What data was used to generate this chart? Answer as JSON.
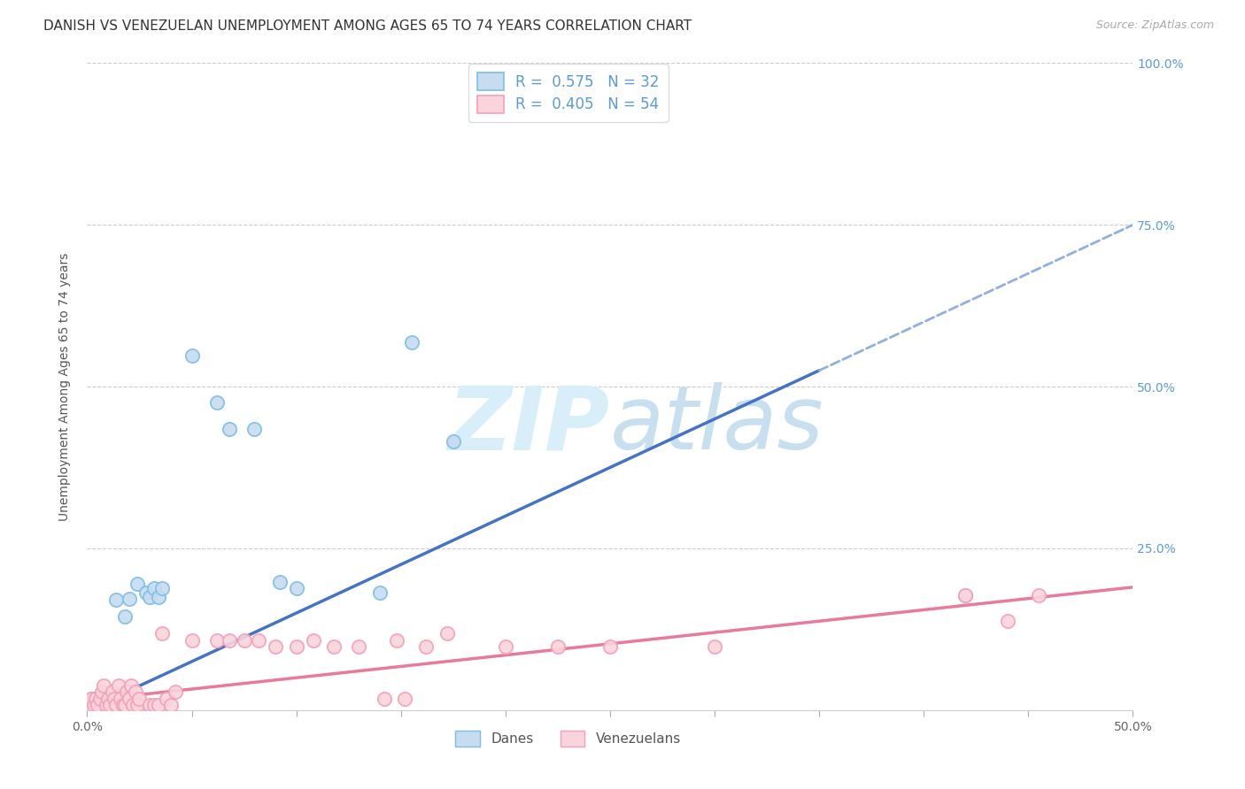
{
  "title": "DANISH VS VENEZUELAN UNEMPLOYMENT AMONG AGES 65 TO 74 YEARS CORRELATION CHART",
  "source_text": "Source: ZipAtlas.com",
  "ylabel": "Unemployment Among Ages 65 to 74 years",
  "xlim": [
    0,
    0.5
  ],
  "ylim": [
    0,
    1.0
  ],
  "legend_R_danes": "R = 0.575",
  "legend_N_danes": "N = 32",
  "legend_R_vene": "R = 0.405",
  "legend_N_vene": "N = 54",
  "danes_color_edge": "#7fbde8",
  "danes_color_fill": "#c6dcef",
  "vene_color_edge": "#f4a0b8",
  "vene_color_fill": "#fad4dc",
  "blue_line_color": "#4472C4",
  "blue_line_light": "#90b0e0",
  "pink_line_color": "#E87B9A",
  "watermark_color": "#d8eef8",
  "background_color": "#ffffff",
  "grid_color": "#cccccc",
  "title_fontsize": 11,
  "axis_label_fontsize": 10,
  "tick_fontsize": 10,
  "legend_fontsize": 12,
  "danes_scatter_x": [
    0.001,
    0.002,
    0.004,
    0.006,
    0.008,
    0.009,
    0.01,
    0.011,
    0.012,
    0.013,
    0.014,
    0.016,
    0.018,
    0.02,
    0.022,
    0.024,
    0.026,
    0.028,
    0.03,
    0.032,
    0.034,
    0.036,
    0.05,
    0.062,
    0.068,
    0.08,
    0.092,
    0.1,
    0.14,
    0.155,
    0.175,
    0.42
  ],
  "danes_scatter_y": [
    0.008,
    0.018,
    0.008,
    0.018,
    0.008,
    0.018,
    0.008,
    0.018,
    0.008,
    0.018,
    0.17,
    0.008,
    0.145,
    0.172,
    0.008,
    0.195,
    0.008,
    0.182,
    0.175,
    0.188,
    0.175,
    0.188,
    0.548,
    0.475,
    0.435,
    0.435,
    0.198,
    0.188,
    0.182,
    0.568,
    0.415,
    0.178
  ],
  "vene_scatter_x": [
    0.001,
    0.002,
    0.003,
    0.004,
    0.005,
    0.006,
    0.007,
    0.008,
    0.009,
    0.01,
    0.011,
    0.012,
    0.013,
    0.014,
    0.015,
    0.016,
    0.017,
    0.018,
    0.019,
    0.02,
    0.021,
    0.022,
    0.023,
    0.024,
    0.025,
    0.03,
    0.032,
    0.034,
    0.036,
    0.038,
    0.04,
    0.042,
    0.05,
    0.062,
    0.068,
    0.075,
    0.082,
    0.09,
    0.1,
    0.108,
    0.118,
    0.13,
    0.142,
    0.148,
    0.152,
    0.162,
    0.172,
    0.2,
    0.225,
    0.25,
    0.3,
    0.42,
    0.44,
    0.455
  ],
  "vene_scatter_y": [
    0.008,
    0.018,
    0.008,
    0.018,
    0.008,
    0.018,
    0.028,
    0.038,
    0.008,
    0.018,
    0.008,
    0.028,
    0.018,
    0.008,
    0.038,
    0.018,
    0.008,
    0.008,
    0.028,
    0.018,
    0.038,
    0.008,
    0.028,
    0.008,
    0.018,
    0.008,
    0.008,
    0.008,
    0.118,
    0.018,
    0.008,
    0.028,
    0.108,
    0.108,
    0.108,
    0.108,
    0.108,
    0.098,
    0.098,
    0.108,
    0.098,
    0.098,
    0.018,
    0.108,
    0.018,
    0.098,
    0.118,
    0.098,
    0.098,
    0.098,
    0.098,
    0.178,
    0.138,
    0.178
  ]
}
